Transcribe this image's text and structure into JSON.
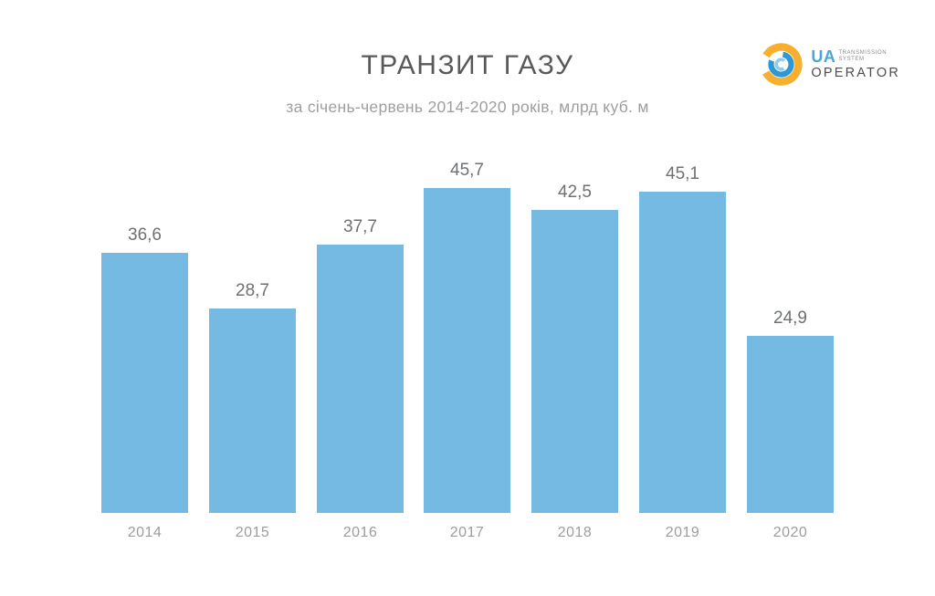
{
  "header": {
    "title": "ТРАНЗИТ ГАЗУ",
    "subtitle": "за січень-червень 2014-2020 років, млрд куб. м"
  },
  "logo": {
    "ua": "UA",
    "line1": "TRANSMISSION",
    "line2": "SYSTEM",
    "operator": "OPERATOR",
    "colors": {
      "swirl_yellow": "#F8AF2D",
      "swirl_blue": "#2F97D4",
      "swirl_light_blue": "#8FCBEB",
      "ua_text": "#45A7DC",
      "operator_text": "#4D4D4F"
    }
  },
  "chart_data": {
    "type": "bar",
    "title": "ТРАНЗИТ ГАЗУ",
    "subtitle": "за січень-червень 2014-2020 років, млрд куб. м",
    "categories": [
      "2014",
      "2015",
      "2016",
      "2017",
      "2018",
      "2019",
      "2020"
    ],
    "values": [
      36.6,
      28.7,
      37.7,
      45.7,
      42.5,
      45.1,
      24.9
    ],
    "value_labels": [
      "36,6",
      "28,7",
      "37,7",
      "45,7",
      "42,5",
      "45,1",
      "24,9"
    ],
    "unit": "млрд куб. м",
    "xlabel": "",
    "ylabel": "",
    "ylim": [
      0,
      50
    ],
    "grid": false,
    "legend": false,
    "bar_color": "#75BAE2",
    "value_label_color": "#6E7174",
    "category_label_color": "#9B9DA0"
  }
}
